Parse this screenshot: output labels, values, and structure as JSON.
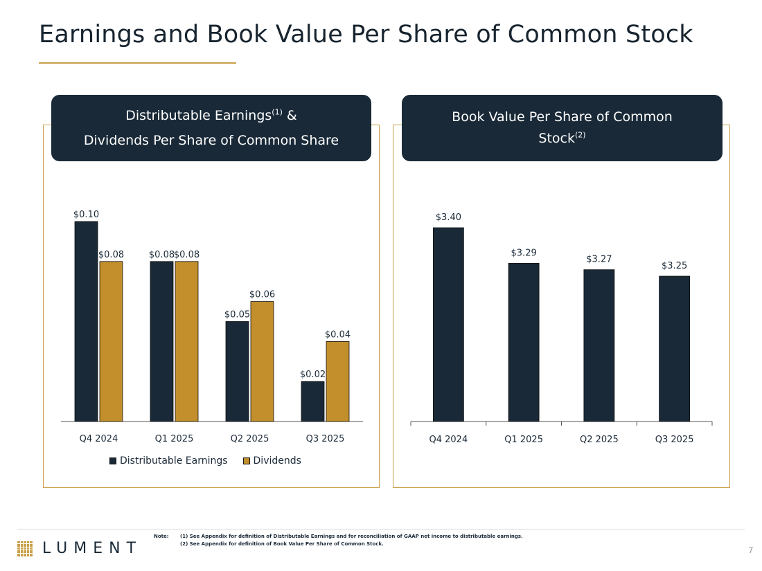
{
  "title": "Earnings and Book Value Per Share of Common Stock",
  "colors": {
    "navy": "#192937",
    "gold": "#c28f2c",
    "gold_rule": "#c9a04a"
  },
  "left_header": {
    "line1": "Distributable Earnings",
    "sup1": "(1)",
    "amp": " &",
    "line2": "Dividends Per Share of Common Share"
  },
  "right_header": {
    "line1": "Book Value Per Share of Common",
    "line2": "Stock",
    "sup2": "(2)"
  },
  "chart_data": [
    {
      "type": "bar",
      "title": "Distributable Earnings(1) & Dividends Per Share of Common Share",
      "categories": [
        "Q4 2024",
        "Q1 2025",
        "Q2 2025",
        "Q3 2025"
      ],
      "series": [
        {
          "name": "Distributable Earnings",
          "color": "#192937",
          "values": [
            0.1,
            0.08,
            0.05,
            0.02
          ],
          "labels": [
            "$0.10",
            "$0.08",
            "$0.05",
            "$0.02"
          ]
        },
        {
          "name": "Dividends",
          "color": "#c28f2c",
          "values": [
            0.08,
            0.08,
            0.06,
            0.04
          ],
          "labels": [
            "$0.08",
            "$0.08",
            "$0.06",
            "$0.04"
          ]
        }
      ],
      "ylim": [
        0,
        0.1
      ],
      "legend": "bottom"
    },
    {
      "type": "bar",
      "title": "Book Value Per Share of Common Stock(2)",
      "categories": [
        "Q4 2024",
        "Q1 2025",
        "Q2 2025",
        "Q3 2025"
      ],
      "series": [
        {
          "name": "Book Value Per Share",
          "color": "#192937",
          "values": [
            3.4,
            3.29,
            3.27,
            3.25
          ],
          "labels": [
            "$3.40",
            "$3.29",
            "$3.27",
            "$3.25"
          ]
        }
      ],
      "ylim": [
        2.8,
        3.4
      ]
    }
  ],
  "legend": {
    "item1": "Distributable Earnings",
    "item2": "Dividends"
  },
  "footer": {
    "logo_text": "LUMENT",
    "note_label": "Note:",
    "note1": "(1) See Appendix for definition of Distributable Earnings and for reconciliation of GAAP net income to distributable earnings.",
    "note2": "(2) See Appendix for definition of Book Value Per Share of Common Stock.",
    "page_number": "7"
  }
}
